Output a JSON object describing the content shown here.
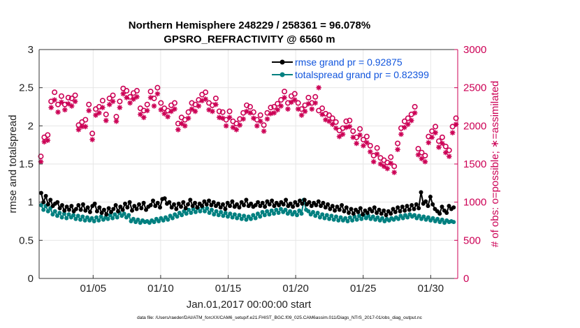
{
  "chart_data": {
    "type": "line",
    "title": "Northern Hemisphere 248229 / 258361 = 96.078%",
    "subtitle": "GPSRO_REFRACTIVITY @ 6560 m",
    "xlabel": "Jan.01,2017 00:00:00 start",
    "ylabel_left": "rmse and totalspread",
    "ylabel_right": "# of obs: o=possible; ∗=assimilated",
    "x_range": [
      1,
      32
    ],
    "ylim_left": [
      0,
      3
    ],
    "ylim_right": [
      0,
      3000
    ],
    "x_ticks": [
      5,
      10,
      15,
      20,
      25,
      30
    ],
    "x_tick_labels": [
      "01/05",
      "01/10",
      "01/15",
      "01/20",
      "01/25",
      "01/30"
    ],
    "y_left_ticks": [
      "0",
      "0.5",
      "1",
      "1.5",
      "2",
      "2.5",
      "3"
    ],
    "y_right_ticks": [
      "0",
      "500",
      "1000",
      "1500",
      "2000",
      "2500",
      "3000"
    ],
    "grid": true,
    "legend_position": "top-right",
    "colors": {
      "rmse": "#000000",
      "spread": "#008080",
      "obs": "#cc0055",
      "legend_text": "#1155dd",
      "grid": "#e6e6e6"
    },
    "series": [
      {
        "name": "rmse grand pr = 0.92875",
        "axis": "left",
        "color": "#000000",
        "values": [
          1.12,
          1.0,
          1.08,
          0.97,
          1.03,
          0.95,
          0.98,
          1.0,
          0.92,
          0.96,
          0.89,
          0.94,
          0.9,
          0.95,
          0.88,
          0.91,
          0.96,
          0.9,
          0.97,
          0.89,
          0.93,
          0.87,
          0.95,
          0.98,
          0.88,
          0.93,
          0.86,
          0.9,
          0.84,
          0.92,
          0.87,
          0.91,
          0.96,
          0.88,
          0.94,
          0.9,
          0.98,
          0.93,
          1.0,
          0.89,
          0.95,
          0.91,
          0.97,
          0.92,
          0.99,
          0.9,
          0.94,
          0.96,
          1.02,
          0.95,
          0.99,
          0.93,
          1.04,
          1.05,
          0.98,
          1.0,
          0.93,
          0.97,
          0.91,
          0.98,
          0.94,
          1.0,
          0.92,
          0.97,
          1.03,
          0.95,
          0.99,
          0.93,
          0.98,
          0.95,
          1.01,
          0.97,
          1.02,
          0.96,
          1.0,
          0.95,
          0.98,
          0.93,
          0.97,
          0.91,
          0.99,
          0.95,
          1.01,
          0.94,
          0.97,
          0.93,
          1.0,
          0.96,
          1.03,
          0.95,
          0.98,
          0.94,
          0.96,
          1.0,
          0.95,
          0.99,
          0.94,
          1.01,
          0.97,
          1.02,
          0.95,
          0.99,
          0.96,
          1.0,
          0.97,
          1.03,
          0.95,
          0.98,
          0.94,
          1.0,
          0.96,
          1.02,
          0.98,
          1.03,
          0.97,
          1.0,
          0.95,
          0.99,
          0.96,
          1.01,
          0.95,
          0.99,
          0.93,
          0.97,
          0.91,
          0.95,
          0.89,
          0.94,
          0.9,
          0.96,
          0.88,
          0.93,
          0.86,
          0.91,
          0.85,
          0.9,
          0.87,
          0.92,
          0.84,
          0.89,
          0.86,
          0.91,
          0.88,
          0.93,
          0.86,
          0.9,
          0.85,
          0.89,
          0.83,
          0.88,
          0.85,
          0.91,
          0.87,
          0.93,
          0.88,
          0.94,
          0.89,
          0.95,
          0.9,
          0.96,
          0.91,
          0.97,
          0.92,
          1.13,
          0.98,
          1.01,
          0.95,
          1.07,
          0.97,
          0.91,
          0.88,
          0.85,
          0.94,
          0.89,
          0.86,
          0.95,
          0.91,
          0.93
        ]
      },
      {
        "name": "totalspread grand pr = 0.82399",
        "axis": "left",
        "color": "#008080",
        "values": [
          0.96,
          0.9,
          0.95,
          0.88,
          0.92,
          0.84,
          0.88,
          0.82,
          0.86,
          0.8,
          0.85,
          0.79,
          0.84,
          0.8,
          0.83,
          0.78,
          0.82,
          0.77,
          0.81,
          0.76,
          0.8,
          0.76,
          0.79,
          0.75,
          0.8,
          0.76,
          0.81,
          0.77,
          0.8,
          0.78,
          0.83,
          0.79,
          0.84,
          0.8,
          0.86,
          0.82,
          0.85,
          0.8,
          0.83,
          0.75,
          0.78,
          0.74,
          0.77,
          0.73,
          0.76,
          0.74,
          0.75,
          0.73,
          0.76,
          0.74,
          0.78,
          0.75,
          0.79,
          0.76,
          0.8,
          0.77,
          0.82,
          0.79,
          0.84,
          0.81,
          0.86,
          0.83,
          0.88,
          0.85,
          0.9,
          0.86,
          0.91,
          0.87,
          0.92,
          0.88,
          0.93,
          0.88,
          0.92,
          0.86,
          0.9,
          0.84,
          0.88,
          0.83,
          0.87,
          0.82,
          0.86,
          0.81,
          0.85,
          0.8,
          0.84,
          0.79,
          0.83,
          0.78,
          0.82,
          0.77,
          0.81,
          0.78,
          0.83,
          0.79,
          0.85,
          0.81,
          0.87,
          0.83,
          0.88,
          0.84,
          0.89,
          0.85,
          0.9,
          0.86,
          0.91,
          0.87,
          0.9,
          0.85,
          0.88,
          0.84,
          0.87,
          0.83,
          0.89,
          0.85,
          1.03,
          0.9,
          0.88,
          0.84,
          0.87,
          0.82,
          0.86,
          0.8,
          0.84,
          0.79,
          0.83,
          0.78,
          0.82,
          0.77,
          0.81,
          0.76,
          0.8,
          0.76,
          0.79,
          0.75,
          0.8,
          0.76,
          0.81,
          0.77,
          0.82,
          0.78,
          0.83,
          0.79,
          0.82,
          0.78,
          0.81,
          0.77,
          0.8,
          0.76,
          0.79,
          0.75,
          0.78,
          0.76,
          0.79,
          0.77,
          0.8,
          0.78,
          0.82,
          0.79,
          0.83,
          0.8,
          0.84,
          0.81,
          0.83,
          0.79,
          0.82,
          0.78,
          0.81,
          0.77,
          0.8,
          0.76,
          0.79,
          0.75,
          0.78,
          0.74,
          0.77,
          0.73,
          0.76,
          0.74,
          0.75,
          0.74
        ]
      },
      {
        "name": "possible",
        "axis": "right",
        "marker": "o",
        "color": "#cc0055",
        "values": [
          1600,
          1850,
          1880,
          2320,
          2440,
          2280,
          2390,
          2280,
          2370,
          2360,
          2400,
          2010,
          2050,
          2080,
          2280,
          1900,
          2220,
          2250,
          2330,
          2150,
          2360,
          2400,
          2120,
          2320,
          2490,
          2460,
          2380,
          2430,
          2460,
          2230,
          2200,
          2280,
          2450,
          2360,
          2500,
          2300,
          2230,
          2200,
          2270,
          2300,
          2030,
          2110,
          2080,
          2180,
          2300,
          2280,
          2340,
          2410,
          2440,
          2300,
          2270,
          2360,
          2190,
          2180,
          2080,
          2190,
          2060,
          2030,
          2090,
          2170,
          2270,
          2250,
          2180,
          2080,
          2140,
          2010,
          2170,
          2240,
          2250,
          2290,
          2340,
          2450,
          2300,
          2390,
          2420,
          2300,
          2220,
          2270,
          2370,
          2300,
          2380,
          2200,
          2230,
          2160,
          2140,
          2100,
          2050,
          1940,
          1970,
          2060,
          2070,
          1930,
          1850,
          1960,
          1820,
          1860,
          1740,
          1610,
          1710,
          1580,
          1550,
          1520,
          1590,
          1470,
          1770,
          1970,
          2060,
          2100,
          2150,
          2250,
          1700,
          1650,
          1610,
          1860,
          1930,
          1990,
          1800,
          1850,
          1730,
          1680,
          1990,
          2100
        ]
      },
      {
        "name": "assimilated",
        "axis": "right",
        "marker": "*",
        "color": "#cc0055",
        "values": [
          1530,
          1790,
          1810,
          2240,
          2340,
          2180,
          2310,
          2210,
          2290,
          2260,
          2320,
          1950,
          1990,
          1990,
          2200,
          1820,
          2140,
          2170,
          2240,
          2070,
          2280,
          2320,
          2060,
          2240,
          2420,
          2370,
          2300,
          2350,
          2380,
          2150,
          2110,
          2200,
          2370,
          2260,
          2420,
          2210,
          2160,
          2120,
          2190,
          2220,
          1950,
          2030,
          2000,
          2100,
          2220,
          2190,
          2260,
          2330,
          2350,
          2210,
          2190,
          2280,
          2110,
          2100,
          2000,
          2110,
          1980,
          1950,
          2010,
          2090,
          2190,
          2170,
          2100,
          2000,
          2060,
          1930,
          2090,
          2160,
          2170,
          2210,
          2260,
          2370,
          2220,
          2310,
          2340,
          2220,
          2140,
          2190,
          2290,
          2220,
          2300,
          2500,
          2150,
          2080,
          2060,
          2020,
          1970,
          1860,
          1890,
          1980,
          1990,
          1850,
          1770,
          1880,
          1740,
          1780,
          1660,
          1530,
          1630,
          1500,
          1470,
          1440,
          1510,
          1390,
          1690,
          1890,
          1980,
          2020,
          2070,
          2170,
          1620,
          1570,
          1530,
          1780,
          1850,
          1910,
          1720,
          1770,
          1650,
          1600,
          1910,
          2020
        ]
      }
    ]
  },
  "footnote": "data file: /Users/raeder/DAI/ATM_forcXX/CAM6_setup/f.e21.FHIST_BGC.f09_025.CAM6assim.011/Diags_NTrS_2017-01/obs_diag_output.nc"
}
